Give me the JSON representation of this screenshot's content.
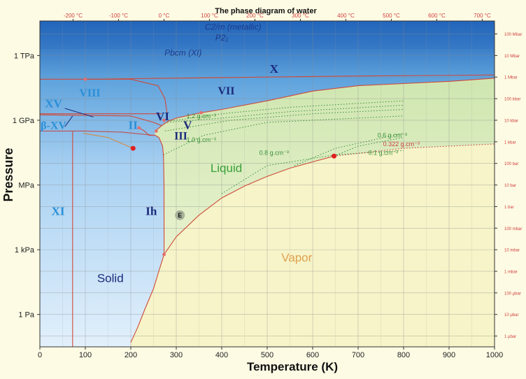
{
  "chart_data": {
    "type": "phase-diagram",
    "title": "The phase diagram of water",
    "xlabel": "Temperature (K)",
    "ylabel": "Pressure",
    "xlim": [
      0,
      1000
    ],
    "ylim_log10_Pa": [
      -1.5,
      13.6
    ],
    "x_ticks": [
      0,
      100,
      200,
      300,
      400,
      500,
      600,
      700,
      800,
      900,
      1000
    ],
    "x_ticks_celsius": [
      {
        "label": "-200 °C",
        "K": 73
      },
      {
        "label": "-100 °C",
        "K": 173
      },
      {
        "label": "0 °C",
        "K": 273
      },
      {
        "label": "100 °C",
        "K": 373
      },
      {
        "label": "200 °C",
        "K": 473
      },
      {
        "label": "300 °C",
        "K": 573
      },
      {
        "label": "400 °C",
        "K": 673
      },
      {
        "label": "500 °C",
        "K": 773
      },
      {
        "label": "600 °C",
        "K": 873
      },
      {
        "label": "700 °C",
        "K": 973
      }
    ],
    "y_ticks_pascal": [
      {
        "label": "1 TPa",
        "log10": 12
      },
      {
        "label": "1 GPa",
        "log10": 9
      },
      {
        "label": "MPa",
        "log10": 6
      },
      {
        "label": "1 kPa",
        "log10": 3
      },
      {
        "label": "1 Pa",
        "log10": 0
      }
    ],
    "y_ticks_bar": [
      {
        "label": "100 Mbar",
        "log10": 13
      },
      {
        "label": "10 Mbar",
        "log10": 12
      },
      {
        "label": "1 Mbar",
        "log10": 11
      },
      {
        "label": "100 kbar",
        "log10": 10
      },
      {
        "label": "10 kbar",
        "log10": 9
      },
      {
        "label": "1 kbar",
        "log10": 8
      },
      {
        "label": "100 bar",
        "log10": 7
      },
      {
        "label": "10 bar",
        "log10": 6
      },
      {
        "label": "1 bar",
        "log10": 5
      },
      {
        "label": "100 mbar",
        "log10": 4
      },
      {
        "label": "10 mbar",
        "log10": 3
      },
      {
        "label": "1 mbar",
        "log10": 2
      },
      {
        "label": "100 μbar",
        "log10": 1
      },
      {
        "label": "10 μbar",
        "log10": 0
      },
      {
        "label": "1 μbar",
        "log10": -1
      }
    ],
    "regions": [
      {
        "label": "Solid",
        "T": 155,
        "log10P": 1.5,
        "color": "#1a2a7a"
      },
      {
        "label": "Liquid",
        "T": 410,
        "log10P": 6.6,
        "color": "#3aa03a"
      },
      {
        "label": "Vapor",
        "T": 565,
        "log10P": 2.45,
        "color": "#e0a050"
      }
    ],
    "phases": [
      {
        "label": "C2/m (metallic)",
        "T": 425,
        "log10P": 13.2
      },
      {
        "label": "P2₁",
        "T": 400,
        "log10P": 12.7
      },
      {
        "label": "Pbcm (XI)",
        "T": 315,
        "log10P": 12.0
      },
      {
        "label": "X",
        "T": 515,
        "log10P": 11.2
      },
      {
        "label": "VIII",
        "T": 110,
        "log10P": 10.1
      },
      {
        "label": "VII",
        "T": 410,
        "log10P": 10.2
      },
      {
        "label": "VI",
        "T": 270,
        "log10P": 9.0
      },
      {
        "label": "V",
        "T": 325,
        "log10P": 8.6
      },
      {
        "label": "III",
        "T": 310,
        "log10P": 8.1
      },
      {
        "label": "II",
        "T": 205,
        "log10P": 8.6
      },
      {
        "label": "Ih",
        "T": 245,
        "log10P": 4.6
      },
      {
        "label": "XI",
        "T": 40,
        "log10P": 4.6
      },
      {
        "label": "XV",
        "T": 30,
        "log10P": 9.6
      },
      {
        "label": "β-XV",
        "T": 30,
        "log10P": 8.6
      }
    ],
    "density_labels": [
      {
        "label": "1.2 g.cm⁻³",
        "T": 355,
        "log10P": 9.1
      },
      {
        "label": "1.0 g.cm⁻³",
        "T": 355,
        "log10P": 8.0
      },
      {
        "label": "0.8 g.cm⁻³",
        "T": 515,
        "log10P": 7.4
      },
      {
        "label": "0.6 g.cm⁻³",
        "T": 775,
        "log10P": 8.2
      },
      {
        "label": "0.322 g.cm⁻³",
        "T": 795,
        "log10P": 7.8
      },
      {
        "label": "0.1 g.cm⁻³",
        "T": 755,
        "log10P": 7.4
      }
    ],
    "special_points": [
      {
        "name": "critical-point",
        "T": 647,
        "log10P": 7.34
      },
      {
        "name": "glass-point",
        "T": 205,
        "log10P": 7.7
      },
      {
        "name": "triple-point-ii",
        "T": 218,
        "log10P": 8.65
      },
      {
        "name": "triple-point-iii-v",
        "T": 256,
        "log10P": 8.5
      },
      {
        "name": "triple-point-vi",
        "T": 273,
        "log10P": 9.0
      },
      {
        "name": "triple-point-vii",
        "T": 355,
        "log10P": 9.35
      },
      {
        "name": "triple-point-viii",
        "T": 100,
        "log10P": 10.9
      },
      {
        "name": "triple-point",
        "T": 273.16,
        "log10P": 2.78
      }
    ],
    "e_marker": {
      "label": "E",
      "T": 308,
      "log10P": 4.6
    },
    "boundaries": {
      "sublimation": [
        [
          200,
          -1.3
        ],
        [
          215,
          -0.6
        ],
        [
          232,
          0.3
        ],
        [
          250,
          1.2
        ],
        [
          263,
          2.1
        ],
        [
          273.16,
          2.78
        ]
      ],
      "vaporization": [
        [
          273.16,
          2.78
        ],
        [
          300,
          3.6
        ],
        [
          350,
          4.6
        ],
        [
          400,
          5.4
        ],
        [
          450,
          5.95
        ],
        [
          500,
          6.4
        ],
        [
          550,
          6.78
        ],
        [
          600,
          7.07
        ],
        [
          647,
          7.34
        ]
      ],
      "melting_ih": [
        [
          273.16,
          2.78
        ],
        [
          273,
          6
        ],
        [
          272,
          7.3
        ],
        [
          270,
          7.8
        ],
        [
          262,
          8.2
        ],
        [
          252,
          8.32
        ]
      ],
      "melting_high": [
        [
          255,
          8.52
        ],
        [
          268,
          8.75
        ],
        [
          282,
          8.95
        ],
        [
          300,
          9.1
        ],
        [
          355,
          9.35
        ],
        [
          400,
          9.5
        ],
        [
          500,
          9.9
        ],
        [
          600,
          10.35
        ],
        [
          700,
          10.6
        ],
        [
          800,
          10.7
        ],
        [
          900,
          10.8
        ],
        [
          1000,
          10.95
        ]
      ],
      "vii_viii": [
        [
          0,
          10.9
        ],
        [
          100,
          10.9
        ],
        [
          200,
          10.9
        ],
        [
          260,
          10.6
        ],
        [
          275,
          10.0
        ],
        [
          280,
          9.3
        ]
      ],
      "x_vii": [
        [
          100,
          10.9
        ],
        [
          300,
          10.95
        ],
        [
          500,
          11.0
        ],
        [
          700,
          11.05
        ],
        [
          1000,
          11.1
        ]
      ],
      "viii_vi": [
        [
          0,
          9.3
        ],
        [
          100,
          9.3
        ],
        [
          200,
          9.3
        ],
        [
          268,
          9.3
        ]
      ],
      "vi_ii": [
        [
          0,
          9.25
        ],
        [
          200,
          9.2
        ],
        [
          250,
          8.9
        ],
        [
          268,
          8.75
        ]
      ],
      "ii_ih": [
        [
          218,
          8.65
        ],
        [
          230,
          8.5
        ],
        [
          240,
          8.3
        ],
        [
          252,
          8.3
        ]
      ],
      "xi_ih": [
        [
          72,
          -1.5
        ],
        [
          72,
          8.5
        ]
      ],
      "hdl_ldl": [
        [
          0,
          8.5
        ],
        [
          100,
          8.5
        ],
        [
          180,
          8.45
        ],
        [
          252,
          8.3
        ]
      ],
      "glass_transition": [
        [
          95,
          8.4
        ],
        [
          150,
          8.2
        ],
        [
          205,
          7.7
        ]
      ],
      "supercritical": [
        [
          647,
          7.34
        ],
        [
          800,
          7.7
        ],
        [
          1000,
          7.9
        ]
      ]
    },
    "density_isochores": [
      [
        [
          282,
          8.95
        ],
        [
          400,
          9.3
        ],
        [
          550,
          9.6
        ],
        [
          800,
          9.9
        ]
      ],
      [
        [
          280,
          8.9
        ],
        [
          400,
          9.1
        ],
        [
          550,
          9.4
        ],
        [
          800,
          9.7
        ]
      ],
      [
        [
          275,
          8.5
        ],
        [
          420,
          9.0
        ],
        [
          600,
          9.3
        ],
        [
          800,
          9.5
        ]
      ],
      [
        [
          272,
          7.4
        ],
        [
          360,
          8.3
        ],
        [
          500,
          8.9
        ],
        [
          800,
          9.2
        ]
      ],
      [
        [
          560,
          6.9
        ],
        [
          650,
          7.7
        ],
        [
          800,
          8.4
        ]
      ],
      [
        [
          647,
          7.34
        ],
        [
          700,
          7.8
        ],
        [
          800,
          8.2
        ]
      ],
      [
        [
          400,
          5.6
        ],
        [
          500,
          6.9
        ],
        [
          650,
          7.4
        ],
        [
          800,
          7.6
        ]
      ]
    ]
  }
}
